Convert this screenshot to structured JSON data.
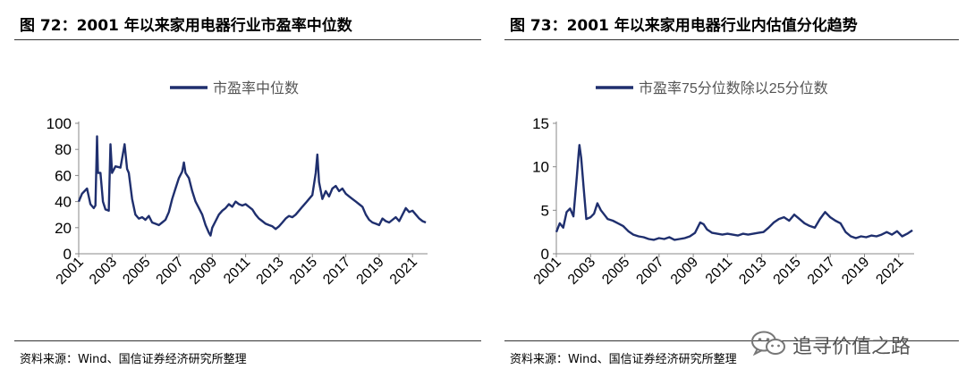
{
  "panels": [
    {
      "figure_title": "图 72：2001 年以来家用电器行业市盈率中位数",
      "source": "资料来源：Wind、国信证券经济研究所整理"
    },
    {
      "figure_title": "图 73：2001 年以来家用电器行业内估值分化趋势",
      "source": "资料来源：Wind、国信证券经济研究所整理"
    }
  ],
  "watermark": {
    "text": "追寻价值之路",
    "icon": "wechat-icon"
  },
  "colors": {
    "line": "#1f2f6e",
    "axis": "#888888",
    "text": "#000000"
  },
  "chart_data": [
    {
      "type": "line",
      "x_tick_labels": [
        "2001",
        "2003",
        "2005",
        "2007",
        "2009",
        "2011",
        "2013",
        "2015",
        "2017",
        "2019",
        "2021"
      ],
      "y_ticks": [
        0,
        20,
        40,
        60,
        80,
        100
      ],
      "ylim": [
        0,
        100
      ],
      "xlim": [
        2001.0,
        2021.9
      ],
      "grid": false,
      "legend_position": "top",
      "series": [
        {
          "name": "市盈率中位数",
          "points": [
            [
              2001.0,
              40
            ],
            [
              2001.2,
              46
            ],
            [
              2001.5,
              50
            ],
            [
              2001.7,
              38
            ],
            [
              2001.9,
              35
            ],
            [
              2002.0,
              37
            ],
            [
              2002.1,
              90
            ],
            [
              2002.15,
              62
            ],
            [
              2002.3,
              62
            ],
            [
              2002.45,
              40
            ],
            [
              2002.6,
              34
            ],
            [
              2002.8,
              33
            ],
            [
              2002.9,
              84
            ],
            [
              2003.0,
              62
            ],
            [
              2003.2,
              67
            ],
            [
              2003.5,
              66
            ],
            [
              2003.75,
              84
            ],
            [
              2003.9,
              65
            ],
            [
              2004.0,
              62
            ],
            [
              2004.2,
              42
            ],
            [
              2004.4,
              30
            ],
            [
              2004.6,
              27
            ],
            [
              2004.8,
              28
            ],
            [
              2005.0,
              26
            ],
            [
              2005.2,
              29
            ],
            [
              2005.4,
              24
            ],
            [
              2005.6,
              23
            ],
            [
              2005.8,
              22
            ],
            [
              2006.0,
              24
            ],
            [
              2006.2,
              26
            ],
            [
              2006.4,
              32
            ],
            [
              2006.6,
              42
            ],
            [
              2006.8,
              50
            ],
            [
              2007.0,
              58
            ],
            [
              2007.2,
              63
            ],
            [
              2007.3,
              70
            ],
            [
              2007.4,
              62
            ],
            [
              2007.6,
              58
            ],
            [
              2007.8,
              48
            ],
            [
              2008.0,
              40
            ],
            [
              2008.2,
              35
            ],
            [
              2008.4,
              30
            ],
            [
              2008.6,
              22
            ],
            [
              2008.8,
              16
            ],
            [
              2008.9,
              14
            ],
            [
              2009.0,
              20
            ],
            [
              2009.2,
              25
            ],
            [
              2009.4,
              30
            ],
            [
              2009.6,
              33
            ],
            [
              2009.8,
              35
            ],
            [
              2010.0,
              38
            ],
            [
              2010.2,
              36
            ],
            [
              2010.4,
              40
            ],
            [
              2010.6,
              38
            ],
            [
              2010.8,
              37
            ],
            [
              2011.0,
              38
            ],
            [
              2011.2,
              36
            ],
            [
              2011.4,
              34
            ],
            [
              2011.6,
              30
            ],
            [
              2011.8,
              27
            ],
            [
              2012.0,
              25
            ],
            [
              2012.2,
              23
            ],
            [
              2012.4,
              22
            ],
            [
              2012.6,
              21
            ],
            [
              2012.8,
              19
            ],
            [
              2013.0,
              21
            ],
            [
              2013.2,
              24
            ],
            [
              2013.4,
              27
            ],
            [
              2013.6,
              29
            ],
            [
              2013.8,
              28
            ],
            [
              2014.0,
              30
            ],
            [
              2014.2,
              33
            ],
            [
              2014.4,
              36
            ],
            [
              2014.6,
              39
            ],
            [
              2014.8,
              42
            ],
            [
              2015.0,
              45
            ],
            [
              2015.2,
              62
            ],
            [
              2015.3,
              76
            ],
            [
              2015.4,
              55
            ],
            [
              2015.6,
              42
            ],
            [
              2015.8,
              48
            ],
            [
              2016.0,
              44
            ],
            [
              2016.2,
              50
            ],
            [
              2016.4,
              52
            ],
            [
              2016.6,
              48
            ],
            [
              2016.8,
              50
            ],
            [
              2017.0,
              46
            ],
            [
              2017.2,
              44
            ],
            [
              2017.4,
              42
            ],
            [
              2017.6,
              40
            ],
            [
              2017.8,
              38
            ],
            [
              2018.0,
              36
            ],
            [
              2018.2,
              30
            ],
            [
              2018.4,
              26
            ],
            [
              2018.6,
              24
            ],
            [
              2018.8,
              23
            ],
            [
              2019.0,
              22
            ],
            [
              2019.2,
              27
            ],
            [
              2019.4,
              25
            ],
            [
              2019.6,
              24
            ],
            [
              2019.8,
              26
            ],
            [
              2020.0,
              28
            ],
            [
              2020.2,
              25
            ],
            [
              2020.4,
              30
            ],
            [
              2020.6,
              35
            ],
            [
              2020.8,
              32
            ],
            [
              2021.0,
              33
            ],
            [
              2021.2,
              30
            ],
            [
              2021.4,
              27
            ],
            [
              2021.6,
              25
            ],
            [
              2021.8,
              24
            ]
          ]
        }
      ]
    },
    {
      "type": "line",
      "x_tick_labels": [
        "2001",
        "2003",
        "2005",
        "2007",
        "2009",
        "2011",
        "2013",
        "2015",
        "2017",
        "2019",
        "2021"
      ],
      "y_ticks": [
        0,
        5,
        10,
        15
      ],
      "ylim": [
        0,
        15
      ],
      "xlim": [
        2001.0,
        2021.9
      ],
      "grid": false,
      "legend_position": "top",
      "series": [
        {
          "name": "市盈率75分位数除以25分位数",
          "points": [
            [
              2001.0,
              2.5
            ],
            [
              2001.2,
              3.5
            ],
            [
              2001.4,
              3.0
            ],
            [
              2001.6,
              4.8
            ],
            [
              2001.8,
              5.2
            ],
            [
              2002.0,
              4.3
            ],
            [
              2002.2,
              9.0
            ],
            [
              2002.3,
              11.5
            ],
            [
              2002.35,
              12.5
            ],
            [
              2002.45,
              11.0
            ],
            [
              2002.6,
              7.5
            ],
            [
              2002.75,
              4.0
            ],
            [
              2003.0,
              4.2
            ],
            [
              2003.2,
              4.6
            ],
            [
              2003.4,
              5.8
            ],
            [
              2003.6,
              5.0
            ],
            [
              2003.8,
              4.5
            ],
            [
              2004.0,
              4.0
            ],
            [
              2004.3,
              3.8
            ],
            [
              2004.6,
              3.5
            ],
            [
              2004.9,
              3.2
            ],
            [
              2005.2,
              2.6
            ],
            [
              2005.5,
              2.2
            ],
            [
              2005.8,
              2.0
            ],
            [
              2006.1,
              1.9
            ],
            [
              2006.4,
              1.7
            ],
            [
              2006.7,
              1.6
            ],
            [
              2007.0,
              1.8
            ],
            [
              2007.3,
              1.7
            ],
            [
              2007.6,
              1.9
            ],
            [
              2007.9,
              1.6
            ],
            [
              2008.2,
              1.7
            ],
            [
              2008.5,
              1.8
            ],
            [
              2008.8,
              2.0
            ],
            [
              2009.1,
              2.4
            ],
            [
              2009.4,
              3.6
            ],
            [
              2009.6,
              3.4
            ],
            [
              2009.8,
              2.8
            ],
            [
              2010.1,
              2.4
            ],
            [
              2010.4,
              2.3
            ],
            [
              2010.7,
              2.2
            ],
            [
              2011.0,
              2.3
            ],
            [
              2011.3,
              2.2
            ],
            [
              2011.6,
              2.1
            ],
            [
              2011.9,
              2.3
            ],
            [
              2012.2,
              2.2
            ],
            [
              2012.5,
              2.3
            ],
            [
              2012.8,
              2.4
            ],
            [
              2013.1,
              2.5
            ],
            [
              2013.4,
              3.0
            ],
            [
              2013.7,
              3.6
            ],
            [
              2014.0,
              4.0
            ],
            [
              2014.3,
              4.2
            ],
            [
              2014.6,
              3.8
            ],
            [
              2014.9,
              4.5
            ],
            [
              2015.2,
              4.0
            ],
            [
              2015.5,
              3.5
            ],
            [
              2015.8,
              3.2
            ],
            [
              2016.1,
              3.0
            ],
            [
              2016.4,
              4.0
            ],
            [
              2016.7,
              4.8
            ],
            [
              2017.0,
              4.2
            ],
            [
              2017.3,
              3.8
            ],
            [
              2017.6,
              3.5
            ],
            [
              2017.9,
              2.5
            ],
            [
              2018.2,
              2.0
            ],
            [
              2018.5,
              1.8
            ],
            [
              2018.8,
              2.0
            ],
            [
              2019.1,
              1.9
            ],
            [
              2019.4,
              2.1
            ],
            [
              2019.7,
              2.0
            ],
            [
              2020.0,
              2.2
            ],
            [
              2020.3,
              2.5
            ],
            [
              2020.6,
              2.2
            ],
            [
              2020.9,
              2.6
            ],
            [
              2021.2,
              2.0
            ],
            [
              2021.5,
              2.3
            ],
            [
              2021.8,
              2.7
            ]
          ]
        }
      ]
    }
  ]
}
